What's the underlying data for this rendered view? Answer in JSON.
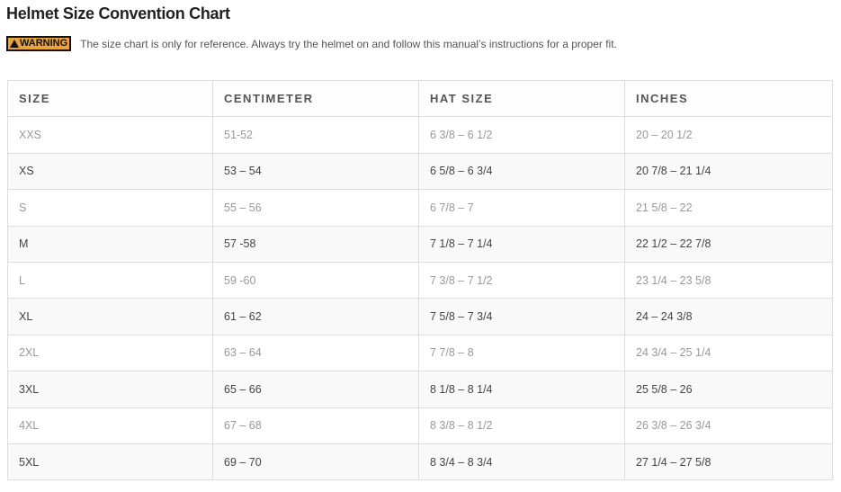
{
  "title": "Helmet Size Convention Chart",
  "warning": {
    "badge": "WARNING",
    "text": "The size chart is only for reference. Always try the helmet on and follow this manual’s instructions for a proper fit."
  },
  "table": {
    "headers": [
      "SIZE",
      "CENTIMETER",
      "HAT SIZE",
      "INCHES"
    ],
    "rows": [
      [
        "XXS",
        "51-52",
        "6 3/8 – 6 1/2",
        "20 – 20 1/2"
      ],
      [
        "XS",
        "53 – 54",
        "6 5/8 – 6 3/4",
        "20 7/8 – 21 1/4"
      ],
      [
        "S",
        "55 – 56",
        "6 7/8 – 7",
        "21 5/8 – 22"
      ],
      [
        "M",
        "57 -58",
        "7 1/8 – 7 1/4",
        "22 1/2 – 22 7/8"
      ],
      [
        "L",
        "59 -60",
        "7 3/8 – 7 1/2",
        "23 1/4 – 23 5/8"
      ],
      [
        "XL",
        "61 – 62",
        "7 5/8 – 7 3/4",
        "24 – 24 3/8"
      ],
      [
        "2XL",
        "63 – 64",
        "7 7/8 – 8",
        "24 3/4 – 25 1/4"
      ],
      [
        "3XL",
        "65 – 66",
        "8 1/8 – 8 1/4",
        "25 5/8 – 26"
      ],
      [
        "4XL",
        "67 – 68",
        "8 3/8 – 8 1/2",
        "26 3/8 – 26 3/4"
      ],
      [
        "5XL",
        "69 – 70",
        "8 3/4 – 8 3/4",
        "27 1/4 – 27 5/8"
      ]
    ]
  },
  "colors": {
    "warning_badge": "#e8a33a",
    "border": "#dddddd"
  }
}
